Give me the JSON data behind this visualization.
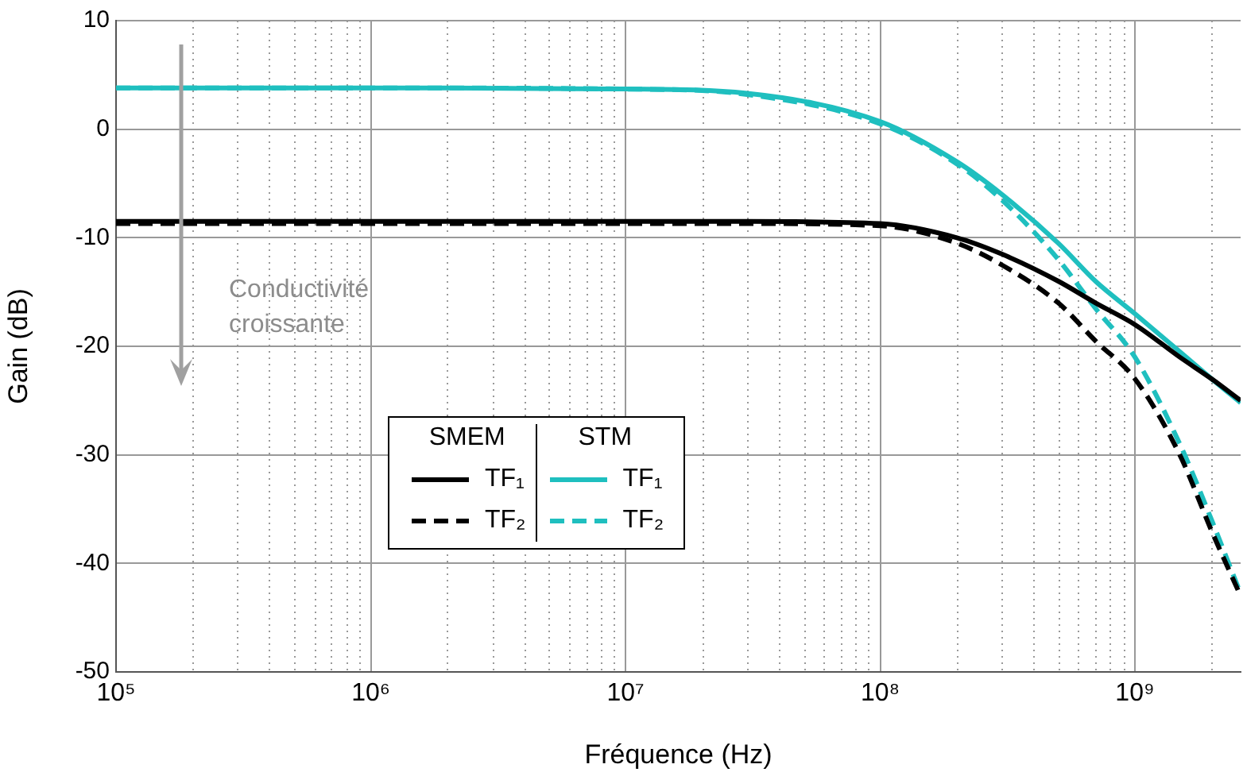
{
  "chart_data": {
    "type": "line",
    "xlabel": "Fréquence (Hz)",
    "ylabel": "Gain (dB)",
    "log": "x",
    "grid": true,
    "legend": "bottom",
    "marker": "none",
    "xlim": [
      100000,
      2600000000
    ],
    "xticks": [
      {
        "value": 100000,
        "label": "10⁵"
      },
      {
        "value": 1000000,
        "label": "10⁶"
      },
      {
        "value": 10000000,
        "label": "10⁷"
      },
      {
        "value": 100000000,
        "label": "10⁸"
      },
      {
        "value": 1000000000,
        "label": "10⁹"
      }
    ],
    "ylim": [
      -50,
      10
    ],
    "yticks": [
      -50,
      -40,
      -30,
      -20,
      -10,
      0,
      10
    ],
    "x": [
      100000,
      1000000,
      10000000,
      30000000,
      100000000,
      200000000,
      300000000,
      500000000,
      700000000,
      1000000000,
      1500000000,
      2000000000,
      2600000000
    ],
    "annotations": [
      "SMEM",
      "STM",
      "Conductivité croissante"
    ],
    "series": [
      {
        "name": "TF₁",
        "color": "#000000",
        "line_style": "solid",
        "values": [
          -8.5,
          -8.5,
          -8.5,
          -8.5,
          -8.7,
          -10,
          -11.5,
          -14,
          -16,
          -18,
          -21,
          -23,
          -25
        ]
      },
      {
        "name": "TF₂",
        "color": "#000000",
        "line_style": "dashed",
        "values": [
          -8.7,
          -8.7,
          -8.7,
          -8.7,
          -8.9,
          -10.5,
          -12.5,
          -16,
          -19.5,
          -23,
          -30,
          -37,
          -43
        ]
      },
      {
        "name": "TF₁",
        "color": "#1fbfbf",
        "line_style": "solid",
        "values": [
          3.8,
          3.8,
          3.7,
          3.3,
          0.7,
          -3,
          -6,
          -10.5,
          -14,
          -17,
          -20.5,
          -23,
          -25.2
        ]
      },
      {
        "name": "TF₂",
        "color": "#1fbfbf",
        "line_style": "dashed",
        "values": [
          3.8,
          3.8,
          3.7,
          3.2,
          0.5,
          -3.2,
          -6.5,
          -12,
          -16.5,
          -21,
          -29,
          -36,
          -42.8
        ]
      }
    ]
  }
}
